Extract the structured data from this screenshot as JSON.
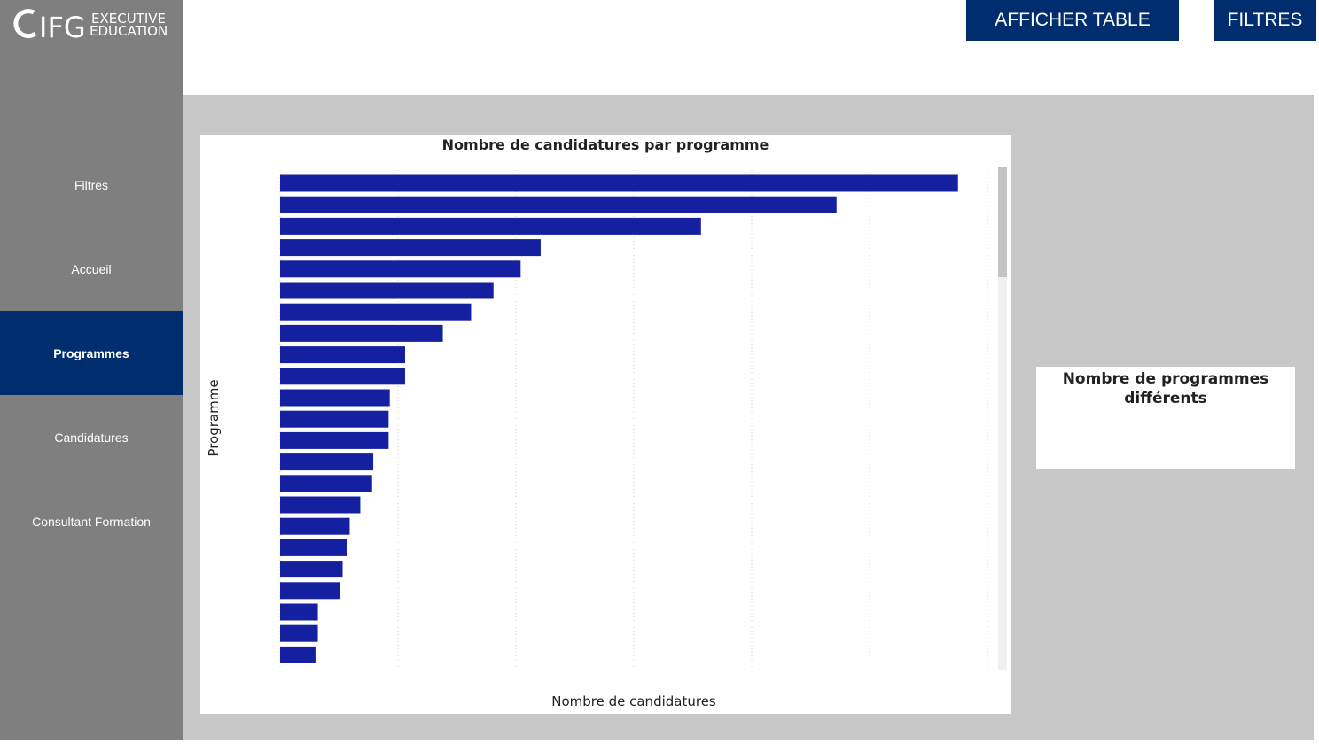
{
  "logo": {
    "brand": "IFG",
    "line1": "EXECUTIVE",
    "line2": "EDUCATION"
  },
  "nav": {
    "items": [
      "Filtres",
      "Accueil",
      "Programmes",
      "Candidatures",
      "Consultant Formation"
    ],
    "active": 2
  },
  "buttons": [
    "AFFICHER TABLE",
    "FILTRES"
  ],
  "chart_data": {
    "type": "bar",
    "orientation": "horizontal",
    "title": "Nombre de candidatures par programme",
    "x_label": "Nombre de candidatures",
    "y_label": "Programme",
    "categories": [
      null,
      null,
      null,
      null,
      null,
      null,
      null,
      null,
      null,
      null,
      null,
      null,
      null,
      null,
      null,
      null,
      null,
      null,
      null,
      null,
      null,
      null,
      null
    ],
    "values": [
      5.75,
      4.72,
      3.57,
      2.21,
      2.04,
      1.81,
      1.62,
      1.38,
      1.06,
      1.06,
      0.93,
      0.92,
      0.92,
      0.79,
      0.78,
      0.68,
      0.59,
      0.57,
      0.53,
      0.51,
      0.32,
      0.32,
      0.3
    ],
    "color": "#1420a0",
    "xlim": [
      0,
      6
    ],
    "xticks": [
      0,
      1,
      2,
      3,
      4,
      5,
      6
    ],
    "grid": true
  },
  "card": {
    "title_line1": "Nombre de programmes",
    "title_line2": "différents"
  }
}
